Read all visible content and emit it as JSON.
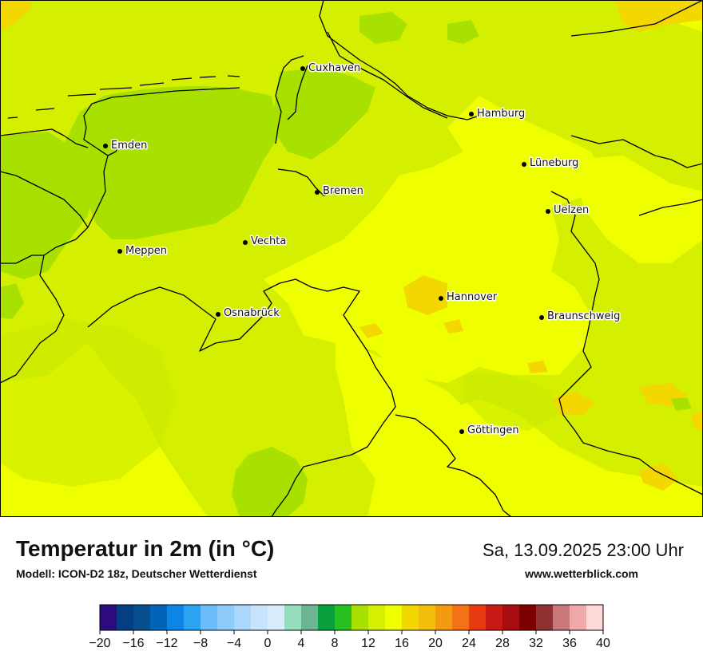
{
  "map": {
    "cities": [
      {
        "name": "Cuxhaven"
      },
      {
        "name": "Hamburg"
      },
      {
        "name": "Emden"
      },
      {
        "name": "Lüneburg"
      },
      {
        "name": "Bremen"
      },
      {
        "name": "Uelzen"
      },
      {
        "name": "Vechta"
      },
      {
        "name": "Meppen"
      },
      {
        "name": "Hannover"
      },
      {
        "name": "Osnabrück"
      },
      {
        "name": "Braunschweig"
      },
      {
        "name": "Göttingen"
      }
    ]
  },
  "footer": {
    "title": "Temperatur in 2m (in °C)",
    "model": "Modell: ICON-D2 18z, Deutscher Wetterdienst",
    "datetime": "Sa, 13.09.2025 23:00 Uhr",
    "website": "www.wetterblick.com"
  },
  "legend": {
    "colors": [
      "#2d0a7d",
      "#043e84",
      "#064f8c",
      "#0065b9",
      "#0b86e6",
      "#2aa3f2",
      "#6abcfa",
      "#8ecbfa",
      "#aad7fb",
      "#c8e4fc",
      "#d8ecfd",
      "#96dcbf",
      "#6cb492",
      "#08a03c",
      "#28c020",
      "#a8e000",
      "#d4f000",
      "#f0ff00",
      "#f2d800",
      "#f4bf0a",
      "#f49a10",
      "#f47216",
      "#e83a10",
      "#c81a14",
      "#a80c10",
      "#7c0000",
      "#903030",
      "#c87878",
      "#f0a8a8",
      "#ffd8d8"
    ],
    "ticks": [
      "−20",
      "−16",
      "−12",
      "−8",
      "−4",
      "0",
      "4",
      "8",
      "12",
      "16",
      "20",
      "24",
      "28",
      "32",
      "36",
      "40"
    ],
    "min": -20,
    "max": 40,
    "step": 2
  }
}
